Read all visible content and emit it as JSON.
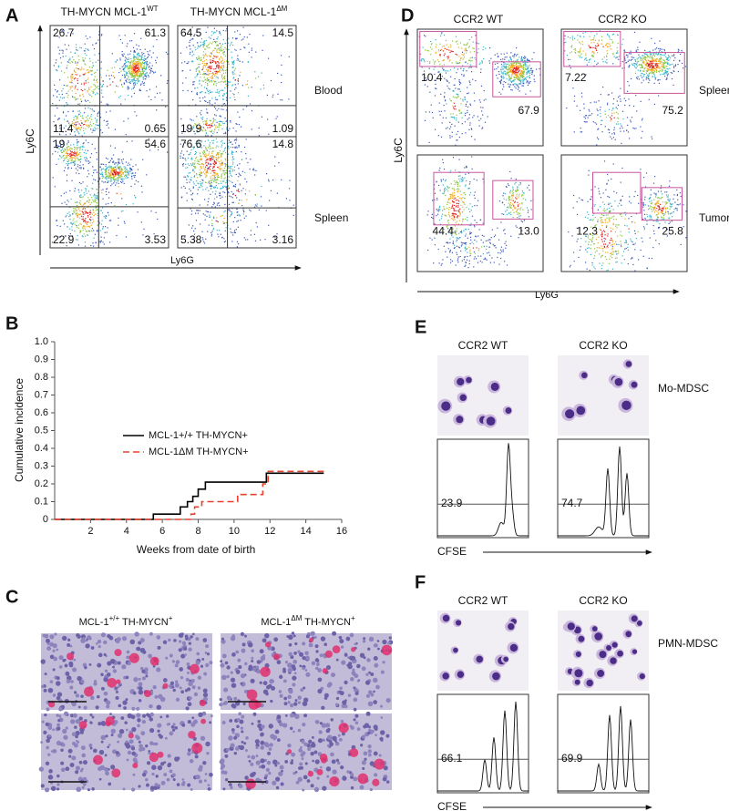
{
  "panels": {
    "A": {
      "letter": "A",
      "headers": [
        [
          "TH-MYCN MCL-1",
          "WT"
        ],
        [
          "TH-MYCN MCL-1",
          "ΔM"
        ]
      ],
      "y_label": "Ly6C",
      "x_label": "Ly6G",
      "rows": [
        {
          "label": "Blood",
          "plots": [
            [
              "26.7",
              "61.3",
              "11.4",
              "0.65"
            ],
            [
              "64.5",
              "14.5",
              "19.9",
              "1.09"
            ]
          ]
        },
        {
          "label": "Spleen",
          "plots": [
            [
              "19",
              "54.6",
              "22.9",
              "3.53"
            ],
            [
              "76.6",
              "14.8",
              "5.38",
              "3.16"
            ]
          ]
        }
      ]
    },
    "B": {
      "letter": "B"
    },
    "C": {
      "letter": "C",
      "headers": [
        [
          "MCL-1",
          "+/+",
          " TH-MYCN",
          "+"
        ],
        [
          "MCL-1",
          "ΔM",
          " TH-MYCN",
          "+"
        ]
      ]
    },
    "D": {
      "letter": "D",
      "headers": [
        "CCR2 WT",
        "CCR2 KO"
      ],
      "y_label": "Ly6C",
      "x_label": "Ly6G",
      "rows": [
        {
          "label": "Spleen",
          "plots": [
            [
              "10.4",
              "67.9"
            ],
            [
              "7.22",
              "75.2"
            ]
          ]
        },
        {
          "label": "Tumor",
          "plots": [
            [
              "44.4",
              "13.0"
            ],
            [
              "12.3",
              "25.8"
            ]
          ]
        }
      ]
    },
    "E": {
      "letter": "E",
      "headers": [
        "CCR2 WT",
        "CCR2 KO"
      ],
      "label": "Mo-MDSC",
      "values": [
        "23.9",
        "74.7"
      ],
      "x_label": "CFSE"
    },
    "F": {
      "letter": "F",
      "headers": [
        "CCR2 WT",
        "CCR2 KO"
      ],
      "label": "PMN-MDSC",
      "values": [
        "66.1",
        "69.9"
      ],
      "x_label": "CFSE"
    }
  },
  "chart_data": {
    "type": "line",
    "x_label": "Weeks from date of birth",
    "y_label": "Cumulative incidence",
    "xlim": [
      0,
      16
    ],
    "ylim": [
      0,
      1
    ],
    "xticks": [
      2,
      4,
      6,
      8,
      10,
      12,
      14,
      16
    ],
    "yticks": [
      0,
      0.1,
      0.2,
      0.3,
      0.4,
      0.5,
      0.6,
      0.7,
      0.8,
      0.9,
      {
        "value": 1,
        "label": "1.0"
      }
    ],
    "series": [
      {
        "name": "MCL-1+/+ TH-MYCN+",
        "color": "#000000",
        "dash": false,
        "x": [
          0,
          5.5,
          5.5,
          7.0,
          7.0,
          7.4,
          7.4,
          7.7,
          7.7,
          8.0,
          8.0,
          8.4,
          8.4,
          11.8,
          11.8,
          15
        ],
        "values": [
          0,
          0,
          0.03,
          0.03,
          0.07,
          0.07,
          0.1,
          0.1,
          0.13,
          0.13,
          0.17,
          0.17,
          0.21,
          0.21,
          0.26,
          0.26
        ]
      },
      {
        "name": "MCL-1ΔM TH-MYCN+",
        "color": "#e8412c",
        "dash": true,
        "x": [
          0,
          7.6,
          7.6,
          7.8,
          7.8,
          8.2,
          8.2,
          10.2,
          10.2,
          11.6,
          11.6,
          11.9,
          11.9,
          15
        ],
        "values": [
          0,
          0,
          0.03,
          0.03,
          0.07,
          0.07,
          0.1,
          0.1,
          0.14,
          0.14,
          0.2,
          0.2,
          0.27,
          0.27
        ]
      }
    ]
  }
}
